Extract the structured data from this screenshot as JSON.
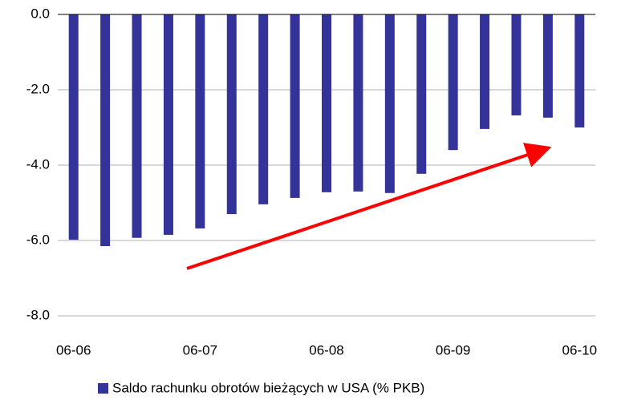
{
  "chart_data": {
    "type": "bar",
    "categories": [
      "06-06",
      null,
      null,
      null,
      "06-07",
      null,
      null,
      null,
      "06-08",
      null,
      null,
      null,
      "06-09",
      null,
      null,
      null,
      "06-10"
    ],
    "series": [
      {
        "name": "Saldo rachunku obrotów bieżących w USA (% PKB)",
        "color": "#333399",
        "values": [
          -5.98,
          -6.15,
          -5.93,
          -5.85,
          -5.68,
          -5.3,
          -5.04,
          -4.87,
          -4.72,
          -4.7,
          -4.74,
          -4.23,
          -3.6,
          -3.04,
          -2.68,
          -2.74,
          -3.0
        ]
      }
    ],
    "ylim": [
      -8,
      0
    ],
    "yticks": [
      {
        "value": 0,
        "label": "0.0"
      },
      {
        "value": -2,
        "label": "-2.0"
      },
      {
        "value": -4,
        "label": "-4.0"
      },
      {
        "value": -6,
        "label": "-6.0"
      },
      {
        "value": -8,
        "label": "-8.0"
      }
    ],
    "grid": true
  }
}
